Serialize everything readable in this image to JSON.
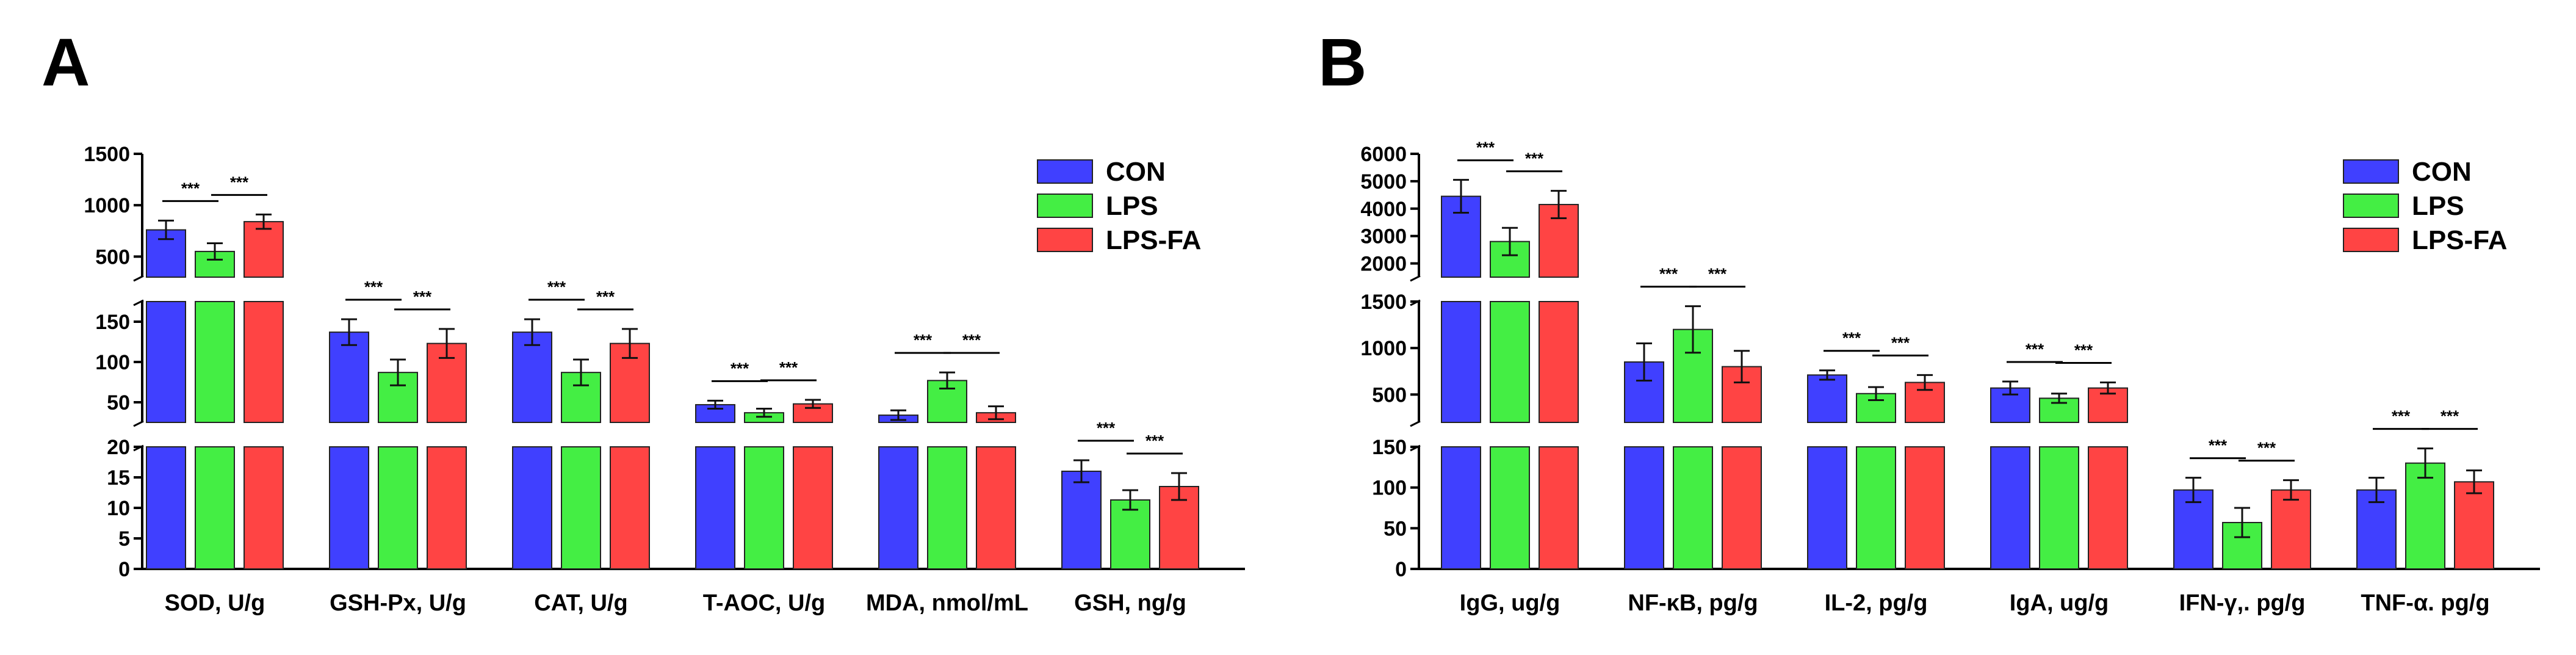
{
  "chart_data": [
    {
      "panel": "A",
      "type": "bar",
      "axis_break": true,
      "series": [
        "CON",
        "LPS",
        "LPS-FA"
      ],
      "categories": [
        "SOD, U/g",
        "GSH-Px, U/g",
        "CAT, U/g",
        "T-AOC, U/g",
        "MDA, nmol/mL",
        "GSH, ng/g"
      ],
      "segments": [
        {
          "range": [
            0,
            20
          ],
          "ticks": [
            0,
            5,
            10,
            15,
            20
          ]
        },
        {
          "range": [
            25,
            175
          ],
          "ticks": [
            50,
            100,
            150
          ]
        },
        {
          "range": [
            300,
            1500
          ],
          "ticks": [
            500,
            1000,
            1500
          ]
        }
      ],
      "values": [
        {
          "category": "SOD, U/g",
          "means": [
            760,
            550,
            840
          ],
          "errors": [
            90,
            80,
            70
          ]
        },
        {
          "category": "GSH-Px, U/g",
          "means": [
            137,
            87,
            123
          ],
          "errors": [
            16,
            16,
            18
          ]
        },
        {
          "category": "CAT, U/g",
          "means": [
            137,
            87,
            123
          ],
          "errors": [
            16,
            16,
            18
          ]
        },
        {
          "category": "T-AOC, U/g",
          "means": [
            47,
            37,
            48
          ],
          "errors": [
            5,
            5,
            5
          ]
        },
        {
          "category": "MDA, nmol/mL",
          "means": [
            34,
            77,
            37
          ],
          "errors": [
            6,
            10,
            8
          ]
        },
        {
          "category": "GSH, ng/g",
          "means": [
            16,
            11.3,
            13.5
          ],
          "errors": [
            1.8,
            1.6,
            2.2
          ]
        }
      ],
      "significance": "***"
    },
    {
      "panel": "B",
      "type": "bar",
      "axis_break": true,
      "series": [
        "CON",
        "LPS",
        "LPS-FA"
      ],
      "categories": [
        "IgG, ug/g",
        "NF-κB, pg/g",
        "IL-2, pg/g",
        "IgA, ug/g",
        "IFN-γ,. pg/g",
        "TNF-α. pg/g"
      ],
      "segments": [
        {
          "range": [
            0,
            150
          ],
          "ticks": [
            0,
            50,
            100,
            150
          ]
        },
        {
          "range": [
            200,
            1500
          ],
          "ticks": [
            500,
            1000,
            1500
          ]
        },
        {
          "range": [
            1500,
            6000
          ],
          "ticks": [
            2000,
            3000,
            4000,
            5000,
            6000
          ]
        }
      ],
      "values": [
        {
          "category": "IgG, ug/g",
          "means": [
            4450,
            2800,
            4150
          ],
          "errors": [
            600,
            500,
            500
          ]
        },
        {
          "category": "NF-κB, pg/g",
          "means": [
            850,
            1200,
            800
          ],
          "errors": [
            200,
            250,
            170
          ]
        },
        {
          "category": "IL-2, pg/g",
          "means": [
            710,
            510,
            630
          ],
          "errors": [
            50,
            70,
            80
          ]
        },
        {
          "category": "IgA, ug/g",
          "means": [
            570,
            460,
            570
          ],
          "errors": [
            70,
            50,
            60
          ]
        },
        {
          "category": "IFN-γ,. pg/g",
          "means": [
            97,
            57,
            97
          ],
          "errors": [
            15,
            18,
            12
          ]
        },
        {
          "category": "TNF-α. pg/g",
          "means": [
            97,
            130,
            107
          ],
          "errors": [
            15,
            18,
            14
          ]
        }
      ],
      "significance": "***"
    }
  ],
  "colors": {
    "CON": "#4040ff",
    "LPS": "#44ee44",
    "LPS-FA": "#ff4444"
  }
}
